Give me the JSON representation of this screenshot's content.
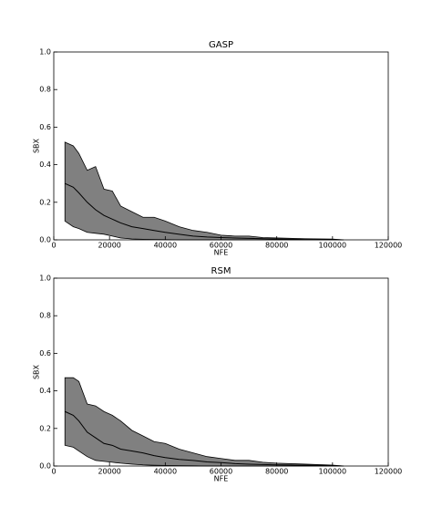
{
  "chart_data": [
    {
      "type": "band",
      "title": "GASP",
      "xlabel": "NFE",
      "ylabel": "SBX",
      "x": [
        4000,
        7000,
        9000,
        12000,
        15000,
        18000,
        21000,
        24000,
        28000,
        32000,
        36000,
        40000,
        45000,
        50000,
        55000,
        60000,
        65000,
        70000,
        75000,
        80000,
        90000,
        100000,
        104000
      ],
      "upper": [
        0.52,
        0.5,
        0.46,
        0.37,
        0.39,
        0.27,
        0.26,
        0.18,
        0.15,
        0.12,
        0.12,
        0.1,
        0.07,
        0.05,
        0.04,
        0.025,
        0.02,
        0.02,
        0.012,
        0.01,
        0.006,
        0.004,
        0
      ],
      "median": [
        0.3,
        0.28,
        0.25,
        0.2,
        0.16,
        0.13,
        0.11,
        0.09,
        0.07,
        0.06,
        0.05,
        0.04,
        0.03,
        0.02,
        0.015,
        0.012,
        0.01,
        0.008,
        0.006,
        0.004,
        0.002,
        0.001,
        0
      ],
      "lower": [
        0.1,
        0.07,
        0.06,
        0.04,
        0.035,
        0.03,
        0.02,
        0.01,
        0.005,
        0.003,
        0.002,
        0.001,
        0,
        0,
        0,
        0,
        0,
        0,
        0,
        0,
        0,
        0,
        0
      ],
      "color": "#808080",
      "xlim": [
        0,
        120000
      ],
      "xticks": [
        0,
        20000,
        40000,
        60000,
        80000,
        100000,
        120000
      ],
      "ylim": [
        0,
        1
      ],
      "yticks": [
        {
          "value": 0,
          "label": "0.0"
        },
        {
          "value": 0.2,
          "label": "0.2"
        },
        {
          "value": 0.4,
          "label": "0.4"
        },
        {
          "value": 0.6,
          "label": "0.6"
        },
        {
          "value": 0.8,
          "label": "0.8"
        },
        {
          "value": 1,
          "label": "1.0"
        }
      ]
    },
    {
      "type": "band",
      "title": "RSM",
      "xlabel": "NFE",
      "ylabel": "SBX",
      "x": [
        4000,
        7000,
        9000,
        12000,
        15000,
        18000,
        21000,
        24000,
        28000,
        32000,
        36000,
        40000,
        45000,
        50000,
        55000,
        60000,
        65000,
        70000,
        75000,
        80000,
        90000,
        100000,
        104000
      ],
      "upper": [
        0.47,
        0.47,
        0.45,
        0.33,
        0.32,
        0.29,
        0.27,
        0.24,
        0.19,
        0.16,
        0.13,
        0.12,
        0.09,
        0.07,
        0.05,
        0.04,
        0.03,
        0.03,
        0.02,
        0.015,
        0.01,
        0.005,
        0
      ],
      "median": [
        0.29,
        0.27,
        0.24,
        0.18,
        0.15,
        0.12,
        0.11,
        0.09,
        0.08,
        0.07,
        0.055,
        0.045,
        0.035,
        0.03,
        0.022,
        0.018,
        0.013,
        0.01,
        0.008,
        0.006,
        0.004,
        0.002,
        0
      ],
      "lower": [
        0.11,
        0.1,
        0.08,
        0.05,
        0.03,
        0.025,
        0.02,
        0.015,
        0.01,
        0.006,
        0.004,
        0.003,
        0.002,
        0.001,
        0,
        0,
        0,
        0,
        0,
        0,
        0,
        0,
        0
      ],
      "color": "#808080",
      "xlim": [
        0,
        120000
      ],
      "xticks": [
        0,
        20000,
        40000,
        60000,
        80000,
        100000,
        120000
      ],
      "ylim": [
        0,
        1
      ],
      "yticks": [
        {
          "value": 0,
          "label": "0.0"
        },
        {
          "value": 0.2,
          "label": "0.2"
        },
        {
          "value": 0.4,
          "label": "0.4"
        },
        {
          "value": 0.6,
          "label": "0.6"
        },
        {
          "value": 0.8,
          "label": "0.8"
        },
        {
          "value": 1,
          "label": "1.0"
        }
      ]
    }
  ]
}
